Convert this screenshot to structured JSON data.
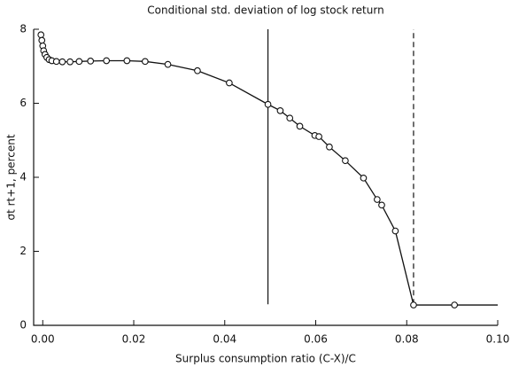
{
  "chart_data": {
    "type": "line",
    "title": "Conditional std. deviation of log stock return",
    "xlabel": "Surplus consumption ratio (C-X)/C",
    "ylabel": "σt rt+1, percent",
    "x": [
      -0.0004,
      -0.0002,
      0.0,
      0.0002,
      0.0005,
      0.0009,
      0.0014,
      0.002,
      0.003,
      0.0043,
      0.006,
      0.008,
      0.0105,
      0.014,
      0.0185,
      0.0225,
      0.0275,
      0.034,
      0.041,
      0.0495,
      0.0522,
      0.0543,
      0.0565,
      0.0598,
      0.0607,
      0.063,
      0.0665,
      0.0705,
      0.0735,
      0.0745,
      0.0775,
      0.0815,
      0.0905
    ],
    "series": [
      {
        "color": "#111111",
        "values": [
          7.85,
          7.7,
          7.55,
          7.42,
          7.32,
          7.24,
          7.18,
          7.15,
          7.13,
          7.12,
          7.12,
          7.13,
          7.14,
          7.15,
          7.15,
          7.13,
          7.05,
          6.88,
          6.55,
          5.97,
          5.8,
          5.6,
          5.38,
          5.13,
          5.1,
          4.82,
          4.45,
          3.98,
          3.4,
          3.25,
          2.55,
          0.55,
          0.55
        ]
      }
    ],
    "tail": {
      "x": 0.1,
      "y": 0.55
    },
    "vlines": [
      {
        "x": 0.0495,
        "y": [
          0.57,
          8
        ],
        "style": "solid"
      },
      {
        "x": 0.0815,
        "y": [
          0.57,
          8
        ],
        "style": "dashed"
      }
    ],
    "xlim": [
      -0.002,
      0.1
    ],
    "ylim": [
      0,
      8
    ],
    "xticks": [
      {
        "value": 0,
        "label": "0.00"
      },
      {
        "value": 0.02,
        "label": "0.02"
      },
      {
        "value": 0.04,
        "label": "0.04"
      },
      {
        "value": 0.06,
        "label": "0.06"
      },
      {
        "value": 0.08,
        "label": "0.08"
      },
      {
        "value": 0.1,
        "label": "0.10"
      }
    ],
    "yticks": [
      0,
      2,
      4,
      6,
      8
    ]
  }
}
